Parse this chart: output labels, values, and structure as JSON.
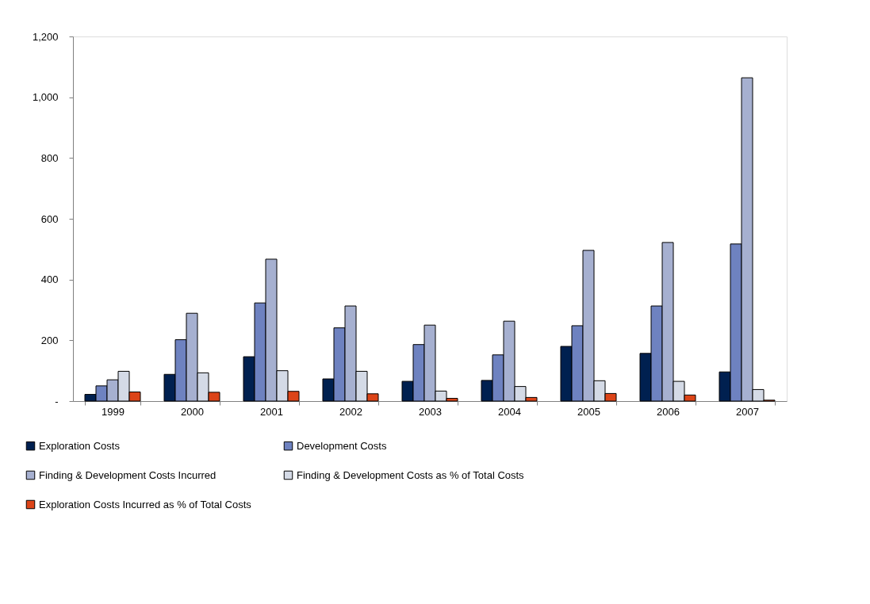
{
  "chart_data": {
    "type": "bar",
    "categories": [
      "1999",
      "2000",
      "2001",
      "2002",
      "2003",
      "2004",
      "2005",
      "2006",
      "2007"
    ],
    "series": [
      {
        "name": "Exploration Costs",
        "color": "#002050",
        "values": [
          22,
          88,
          146,
          73,
          65,
          68,
          180,
          157,
          96
        ]
      },
      {
        "name": "Development Costs",
        "color": "#6e82c0",
        "values": [
          50,
          202,
          323,
          241,
          186,
          152,
          248,
          313,
          517
        ]
      },
      {
        "name": "Finding & Development Costs Incurred",
        "color": "#a6b0d0",
        "values": [
          70,
          289,
          467,
          313,
          250,
          263,
          496,
          522,
          1064
        ]
      },
      {
        "name": "Finding & Development Costs as % of Total Costs",
        "color": "#d4dae6",
        "values": [
          98,
          93,
          100,
          98,
          33,
          48,
          67,
          65,
          38
        ]
      },
      {
        "name": "Exploration Costs Incurred as % of Total Costs",
        "color": "#dc4418",
        "values": [
          30,
          29,
          32,
          24,
          9,
          12,
          25,
          20,
          3
        ]
      }
    ],
    "ylim": [
      0,
      1200
    ],
    "yticks": [
      {
        "value": 0,
        "label": "-"
      },
      200,
      400,
      600,
      800,
      {
        "value": 1000,
        "label": "1,000"
      },
      {
        "value": 1200,
        "label": "1,200"
      }
    ],
    "grid": false,
    "legend": "bottom"
  }
}
